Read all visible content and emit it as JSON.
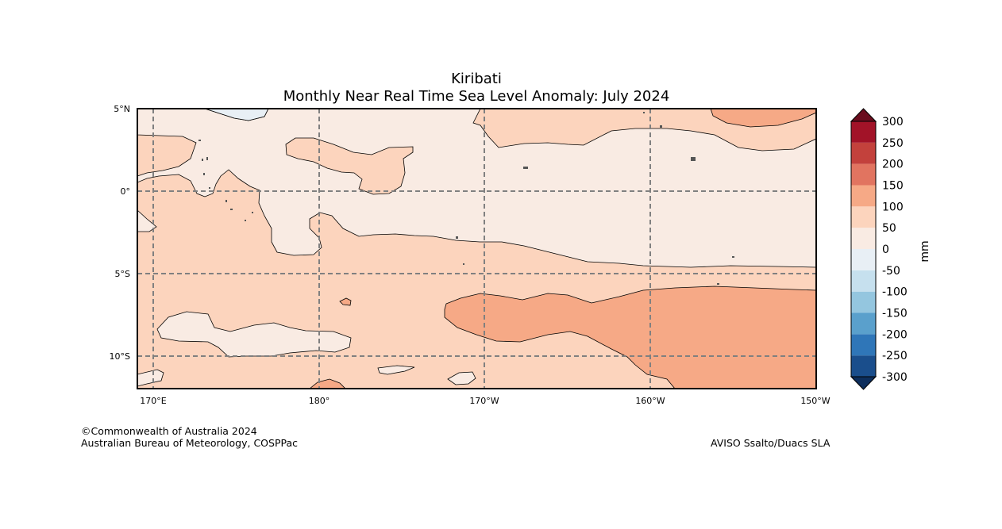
{
  "title": "Kiribati",
  "subtitle": "Monthly Near Real Time Sea Level Anomaly: July 2024",
  "colors": {
    "band_0_50": "#f9ebe3",
    "band_50_100": "#fcd4bd",
    "band_100_150": "#f6a986",
    "band_neg": "#e8eff5",
    "land": "#555555",
    "grid": "#808080"
  },
  "footer": {
    "copyright": "©Commonwealth of Australia 2024",
    "org": "Australian Bureau of Meteorology, COSPPac",
    "source": "AVISO Ssalto/Duacs SLA"
  },
  "chart_data": {
    "type": "heatmap",
    "title": "Kiribati",
    "subtitle": "Monthly Near Real Time Sea Level Anomaly: July 2024",
    "lon_range_deg_east": [
      169,
      210
    ],
    "lat_range_deg": [
      -12,
      5
    ],
    "x_ticks": [
      {
        "lon": 170,
        "label": "170°E"
      },
      {
        "lon": 180,
        "label": "180°"
      },
      {
        "lon": 190,
        "label": "170°W"
      },
      {
        "lon": 200,
        "label": "160°W"
      },
      {
        "lon": 210,
        "label": "150°W"
      }
    ],
    "y_ticks": [
      {
        "lat": 5,
        "label": "5°N"
      },
      {
        "lat": 0,
        "label": "0°"
      },
      {
        "lat": -5,
        "label": "5°S"
      },
      {
        "lat": -10,
        "label": "10°S"
      }
    ],
    "gridlines": true,
    "colorbar": {
      "label": "mm",
      "levels": [
        -300,
        -250,
        -200,
        -150,
        -100,
        -50,
        0,
        50,
        100,
        150,
        200,
        250,
        300
      ],
      "tick_labels": [
        "-300",
        "-250",
        "-200",
        "-150",
        "-100",
        "-50",
        "0",
        "50",
        "100",
        "150",
        "200",
        "250",
        "300"
      ],
      "colors": [
        "#1a4e8c",
        "#2f76b8",
        "#5aa0cc",
        "#94c6df",
        "#c6e0ee",
        "#e8eff5",
        "#f9ebe3",
        "#fcd4bd",
        "#f6a986",
        "#e17460",
        "#c3413c",
        "#a21328"
      ],
      "under_color": "#0d2e5c",
      "over_color": "#6a0d1e"
    },
    "observed_range_mm": [
      -50,
      150
    ],
    "predominant_band_mm": [
      50,
      100
    ]
  }
}
